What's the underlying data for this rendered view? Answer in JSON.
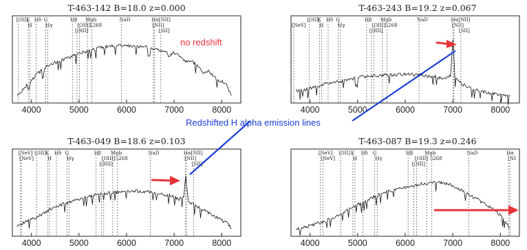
{
  "chart_data": [
    {
      "type": "line",
      "title": "T-463-142  B=18.0  z=0.000",
      "xlim": [
        3600,
        8400
      ],
      "xticks": [
        4000,
        5000,
        6000,
        7000,
        8000
      ],
      "line_labels": [
        {
          "text": "[OII]",
          "x": 3727,
          "row": 0
        },
        {
          "text": "K",
          "x": 3934,
          "row": 0
        },
        {
          "text": "H",
          "x": 3969,
          "row": 1
        },
        {
          "text": "Hδ",
          "x": 4102,
          "row": 0
        },
        {
          "text": "G",
          "x": 4304,
          "row": 0
        },
        {
          "text": "Hγ",
          "x": 4341,
          "row": 1
        },
        {
          "text": "Hβ",
          "x": 4861,
          "row": 0
        },
        {
          "text": "[OIII]",
          "x": 5007,
          "row": 1
        },
        {
          "text": "Mgb",
          "x": 5175,
          "row": 0
        },
        {
          "text": "5268",
          "x": 5268,
          "row": 1
        },
        {
          "text": "[OIII]",
          "x": 4959,
          "row": 2
        },
        {
          "text": "NaD",
          "x": 5893,
          "row": 0
        },
        {
          "text": "Hα[NII]",
          "x": 6563,
          "row": 0
        },
        {
          "text": "[NII]",
          "x": 6583,
          "row": 1
        },
        {
          "text": "[SII]",
          "x": 6720,
          "row": 2
        }
      ],
      "series": [
        {
          "x": [
            3700,
            3800,
            3900,
            3950,
            4000,
            4100,
            4250,
            4400,
            4600,
            4800,
            4900,
            5100,
            5300,
            5500,
            5800,
            6000,
            6200,
            6400,
            6600,
            6800,
            6900,
            7000,
            7200,
            7400,
            7500,
            7600,
            7700,
            7900,
            8100,
            8200
          ],
          "y": [
            0.08,
            0.12,
            0.2,
            0.14,
            0.28,
            0.36,
            0.45,
            0.52,
            0.58,
            0.62,
            0.65,
            0.7,
            0.74,
            0.78,
            0.8,
            0.8,
            0.79,
            0.78,
            0.74,
            0.72,
            0.64,
            0.7,
            0.58,
            0.55,
            0.5,
            0.38,
            0.42,
            0.3,
            0.22,
            0.05
          ]
        }
      ]
    },
    {
      "type": "line",
      "title": "T-463-243  B=19.2  z=0.067",
      "xlim": [
        3600,
        8400
      ],
      "xticks": [
        4000,
        5000,
        6000,
        7000,
        8000
      ],
      "line_labels": [
        {
          "text": "[OII]",
          "x": 3979,
          "row": 0
        },
        {
          "text": "[NeV]",
          "x": 3657,
          "row": 1
        },
        {
          "text": "K",
          "x": 4200,
          "row": 0
        },
        {
          "text": "H",
          "x": 4240,
          "row": 1
        },
        {
          "text": "Hδ",
          "x": 4380,
          "row": 0
        },
        {
          "text": "Hγ",
          "x": 4630,
          "row": 1
        },
        {
          "text": "G",
          "x": 4590,
          "row": 0
        },
        {
          "text": "Hβ",
          "x": 5190,
          "row": 0
        },
        {
          "text": "[OIII]",
          "x": 5345,
          "row": 1
        },
        {
          "text": "Mgb",
          "x": 5522,
          "row": 0
        },
        {
          "text": "5268",
          "x": 5620,
          "row": 1
        },
        {
          "text": "[OIII]",
          "x": 5290,
          "row": 2
        },
        {
          "text": "NaD",
          "x": 6290,
          "row": 0
        },
        {
          "text": "Hα[NII]",
          "x": 7005,
          "row": 0
        },
        {
          "text": "[NII]",
          "x": 7025,
          "row": 1
        },
        {
          "text": "[SII]",
          "x": 7170,
          "row": 2
        }
      ],
      "series": [
        {
          "x": [
            3700,
            3900,
            4100,
            4300,
            4500,
            4700,
            4900,
            5100,
            5400,
            5700,
            6000,
            6300,
            6600,
            6800,
            6950,
            7000,
            7050,
            7200,
            7400,
            7700,
            8000,
            8200
          ],
          "y": [
            0.12,
            0.14,
            0.18,
            0.22,
            0.24,
            0.27,
            0.3,
            0.33,
            0.35,
            0.36,
            0.37,
            0.36,
            0.34,
            0.3,
            0.34,
            0.88,
            0.3,
            0.22,
            0.16,
            0.1,
            0.06,
            0.04
          ]
        }
      ]
    },
    {
      "type": "line",
      "title": "T-463-049  B=18.6  z=0.103",
      "xlim": [
        3600,
        8400
      ],
      "xticks": [
        4000,
        5000,
        6000,
        7000,
        8000
      ],
      "line_labels": [
        {
          "text": "[NeV]",
          "x": 3770,
          "row": 0
        },
        {
          "text": "[NeV]",
          "x": 3790,
          "row": 1
        },
        {
          "text": "[OII]",
          "x": 4110,
          "row": 0
        },
        {
          "text": "K",
          "x": 4340,
          "row": 0
        },
        {
          "text": "H",
          "x": 4380,
          "row": 1
        },
        {
          "text": "Hδ",
          "x": 4525,
          "row": 0
        },
        {
          "text": "G",
          "x": 4750,
          "row": 0
        },
        {
          "text": "Hγ",
          "x": 4790,
          "row": 1
        },
        {
          "text": "Hβ",
          "x": 5360,
          "row": 0
        },
        {
          "text": "[OIII]",
          "x": 5520,
          "row": 1
        },
        {
          "text": "Mgb",
          "x": 5710,
          "row": 0
        },
        {
          "text": "5268",
          "x": 5810,
          "row": 1
        },
        {
          "text": "[OIII]",
          "x": 5470,
          "row": 2
        },
        {
          "text": "NaD",
          "x": 6500,
          "row": 0
        },
        {
          "text": "Hα[NII]",
          "x": 7240,
          "row": 0
        },
        {
          "text": "[NII]",
          "x": 7260,
          "row": 1
        },
        {
          "text": "[SII]",
          "x": 7410,
          "row": 2
        }
      ],
      "series": [
        {
          "x": [
            3700,
            3900,
            4100,
            4300,
            4500,
            4700,
            4900,
            5100,
            5300,
            5500,
            5700,
            5900,
            6100,
            6300,
            6500,
            6700,
            6900,
            7100,
            7200,
            7240,
            7300,
            7500,
            7700,
            7900,
            8100,
            8200
          ],
          "y": [
            0.1,
            0.16,
            0.22,
            0.3,
            0.38,
            0.43,
            0.48,
            0.52,
            0.55,
            0.58,
            0.6,
            0.61,
            0.62,
            0.61,
            0.6,
            0.58,
            0.55,
            0.5,
            0.52,
            0.84,
            0.45,
            0.38,
            0.3,
            0.22,
            0.14,
            0.06
          ]
        }
      ]
    },
    {
      "type": "line",
      "title": "T-463-087  B=19.3  z=0.246",
      "xlim": [
        3600,
        8400
      ],
      "xticks": [
        4000,
        5000,
        6000,
        7000,
        8000
      ],
      "line_labels": [
        {
          "text": "[NeV]",
          "x": 4219,
          "row": 0
        },
        {
          "text": "[NeV]",
          "x": 4270,
          "row": 1
        },
        {
          "text": "[OII]",
          "x": 4644,
          "row": 0
        },
        {
          "text": "K",
          "x": 4900,
          "row": 0
        },
        {
          "text": "H",
          "x": 4944,
          "row": 1
        },
        {
          "text": "Hδ",
          "x": 5110,
          "row": 0
        },
        {
          "text": "G",
          "x": 5360,
          "row": 0
        },
        {
          "text": "Hγ",
          "x": 5410,
          "row": 1
        },
        {
          "text": "Hβ",
          "x": 6060,
          "row": 0
        },
        {
          "text": "[OIII]",
          "x": 6240,
          "row": 1
        },
        {
          "text": "Mgb",
          "x": 6450,
          "row": 0
        },
        {
          "text": "5268",
          "x": 6560,
          "row": 1
        },
        {
          "text": "[OIII]",
          "x": 6180,
          "row": 2
        },
        {
          "text": "NaD",
          "x": 7340,
          "row": 0
        },
        {
          "text": "Hα",
          "x": 8170,
          "row": 0
        },
        {
          "text": "[NI",
          "x": 8200,
          "row": 1
        }
      ],
      "series": [
        {
          "x": [
            3700,
            3900,
            4100,
            4300,
            4500,
            4700,
            4900,
            5100,
            5300,
            5500,
            5700,
            5900,
            6100,
            6300,
            6500,
            6700,
            6900,
            7100,
            7300,
            7500,
            7700,
            7900,
            8100,
            8200
          ],
          "y": [
            0.04,
            0.08,
            0.12,
            0.16,
            0.22,
            0.3,
            0.38,
            0.44,
            0.52,
            0.58,
            0.62,
            0.66,
            0.68,
            0.72,
            0.74,
            0.76,
            0.72,
            0.66,
            0.58,
            0.5,
            0.42,
            0.32,
            0.18,
            0.06
          ]
        }
      ]
    }
  ],
  "annotations": {
    "no_redshift": "no redshift",
    "callout": "Redshifted H alpha emission lines",
    "red": "#e8333a",
    "blue": "#1a3fd6"
  }
}
